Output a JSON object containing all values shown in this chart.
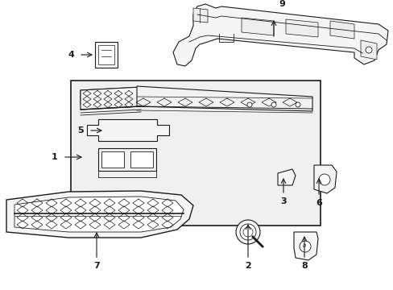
{
  "bg_color": "#ffffff",
  "line_color": "#1a1a1a",
  "box_bg": "#f0f0f0",
  "part_bg": "#f8f8f8"
}
